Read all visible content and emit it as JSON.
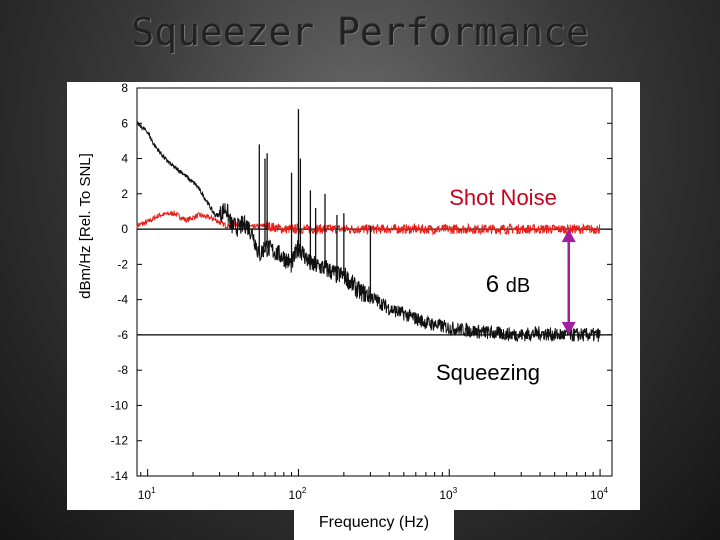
{
  "slide": {
    "title": "Squeezer Performance"
  },
  "chart_data": {
    "type": "line",
    "xlabel": "Frequency (Hz)",
    "ylabel": "dBm/Hz [Rel. To SNL]",
    "xscale": "log",
    "xlim": [
      8.5,
      12000
    ],
    "ylim": [
      -14,
      8
    ],
    "yticks": [
      8,
      6,
      4,
      2,
      0,
      -2,
      -4,
      -6,
      -8,
      -10,
      -12,
      -14
    ],
    "xtick_labels": [
      {
        "base": "10",
        "exp": "1",
        "value": 10
      },
      {
        "base": "10",
        "exp": "2",
        "value": 100
      },
      {
        "base": "10",
        "exp": "3",
        "value": 1000
      },
      {
        "base": "10",
        "exp": "4",
        "value": 10000
      }
    ],
    "grid": false,
    "series": [
      {
        "color": "#e8201a",
        "x": [
          8.5,
          10,
          12,
          15,
          18,
          22,
          27,
          33,
          40,
          50,
          60,
          80,
          100,
          150,
          200,
          300,
          500,
          700,
          1000,
          1500,
          2000,
          3000,
          5000,
          7000,
          10000
        ],
        "y": [
          0.2,
          0.4,
          0.8,
          0.9,
          0.5,
          0.8,
          0.6,
          0.2,
          0.3,
          0.1,
          0.2,
          0.0,
          0.0,
          0.0,
          0.0,
          0.0,
          0.0,
          0.0,
          0.0,
          0.0,
          0.0,
          0.0,
          0.0,
          0.0,
          0.0
        ]
      },
      {
        "color": "#111111",
        "x": [
          8.5,
          10,
          11,
          13,
          15,
          17,
          19,
          21,
          23,
          25,
          27,
          28,
          30,
          33,
          36,
          40,
          45,
          50,
          55,
          60,
          70,
          80,
          90,
          100,
          120,
          150,
          180,
          200,
          250,
          300,
          400,
          500,
          700,
          1000,
          1500,
          2000,
          3000,
          4000,
          5000,
          7000,
          10000
        ],
        "y": [
          6.0,
          5.5,
          4.8,
          4.0,
          3.5,
          3.2,
          2.8,
          2.5,
          2.0,
          1.5,
          1.0,
          0.8,
          0.8,
          1.2,
          0.2,
          0.1,
          0.3,
          -0.3,
          -1.5,
          -1.0,
          -1.3,
          -1.6,
          -2.0,
          -1.0,
          -2.0,
          -2.2,
          -2.6,
          -2.6,
          -3.5,
          -3.8,
          -4.5,
          -4.8,
          -5.3,
          -5.6,
          -5.8,
          -5.9,
          -6.0,
          -5.9,
          -6.0,
          -6.0,
          -6.0
        ]
      }
    ],
    "peaks": [
      {
        "x": 55,
        "y": 4.8
      },
      {
        "x": 60,
        "y": 4.0
      },
      {
        "x": 62,
        "y": 4.3
      },
      {
        "x": 90,
        "y": 3.2
      },
      {
        "x": 100,
        "y": 6.8
      },
      {
        "x": 103,
        "y": 4.0
      },
      {
        "x": 120,
        "y": 2.2
      },
      {
        "x": 130,
        "y": 1.2
      },
      {
        "x": 150,
        "y": 2.0
      },
      {
        "x": 180,
        "y": 0.8
      },
      {
        "x": 200,
        "y": 0.9
      },
      {
        "x": 300,
        "y": 0.2
      }
    ],
    "reference_lines": [
      {
        "y": 0,
        "color": "#000000"
      },
      {
        "y": -6,
        "color": "#000000"
      }
    ],
    "annotations": {
      "shot_noise": {
        "text": "Shot Noise",
        "color": "#c8001c"
      },
      "squeezing_amount": {
        "number": "6",
        "unit": "dB",
        "color": "#000000"
      },
      "squeezing": {
        "text": "Squeezing",
        "color": "#000000"
      },
      "arrow": {
        "color": "#a020a0",
        "x": 6200,
        "from_y": 0,
        "to_y": -6
      }
    }
  }
}
